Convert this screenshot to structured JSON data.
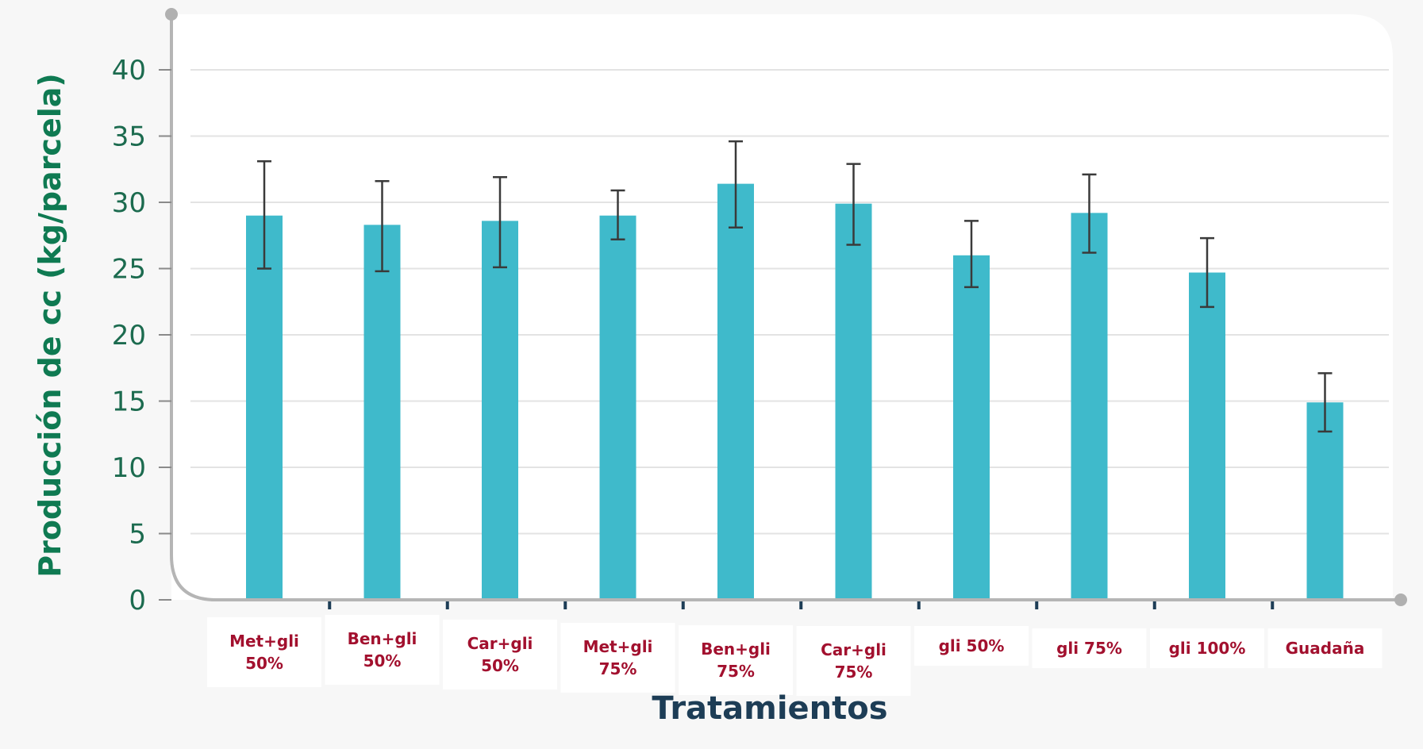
{
  "chart_data": {
    "type": "bar",
    "title": "",
    "xlabel": "Tratamientos",
    "ylabel": "Producción de cc (kg/parcela)",
    "ylim": [
      0,
      43
    ],
    "yticks": [
      0,
      5,
      10,
      15,
      20,
      25,
      30,
      35,
      40
    ],
    "grid": "horizontal",
    "bar_color": "#3fbacb",
    "categories": [
      [
        "Met+gli",
        "50%"
      ],
      [
        "Ben+gli",
        "50%"
      ],
      [
        "Car+gli",
        "50%"
      ],
      [
        "Met+gli",
        "75%"
      ],
      [
        "Ben+gli",
        "75%"
      ],
      [
        "Car+gli",
        "75%"
      ],
      [
        "gli 50%"
      ],
      [
        "gli 75%"
      ],
      [
        "gli 100%"
      ],
      [
        "Guadaña"
      ]
    ],
    "values": [
      29.0,
      28.3,
      28.6,
      29.0,
      31.4,
      29.9,
      26.0,
      29.2,
      24.7,
      14.9
    ],
    "error_low": [
      25.0,
      24.8,
      25.1,
      27.2,
      28.1,
      26.8,
      23.6,
      26.2,
      22.1,
      12.7
    ],
    "error_high": [
      33.1,
      31.6,
      31.9,
      30.9,
      34.6,
      32.9,
      28.6,
      32.1,
      27.3,
      17.1
    ]
  }
}
